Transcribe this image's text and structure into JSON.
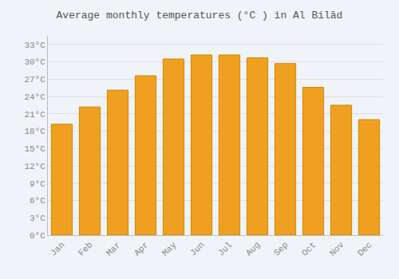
{
  "chart_data": {
    "type": "bar",
    "title": "Average monthly temperatures (°C ) in Al Bilād",
    "categories": [
      "Jan",
      "Feb",
      "Mar",
      "Apr",
      "May",
      "Jun",
      "Jul",
      "Aug",
      "Sep",
      "Oct",
      "Nov",
      "Dec"
    ],
    "values": [
      19.2,
      22.2,
      25.1,
      27.6,
      30.5,
      31.2,
      31.2,
      30.7,
      29.7,
      25.6,
      22.5,
      20.0
    ],
    "color": "#F0A020",
    "ylim": [
      0,
      34.5
    ],
    "yticks": [
      {
        "value": 0,
        "label": "0°C"
      },
      {
        "value": 3,
        "label": "3°C"
      },
      {
        "value": 6,
        "label": "6°C"
      },
      {
        "value": 9,
        "label": "9°C"
      },
      {
        "value": 12,
        "label": "12°C"
      },
      {
        "value": 15,
        "label": "15°C"
      },
      {
        "value": 18,
        "label": "18°C"
      },
      {
        "value": 21,
        "label": "21°C"
      },
      {
        "value": 24,
        "label": "24°C"
      },
      {
        "value": 27,
        "label": "27°C"
      },
      {
        "value": 30,
        "label": "30°C"
      },
      {
        "value": 33,
        "label": "33°C"
      }
    ],
    "grid": true
  }
}
